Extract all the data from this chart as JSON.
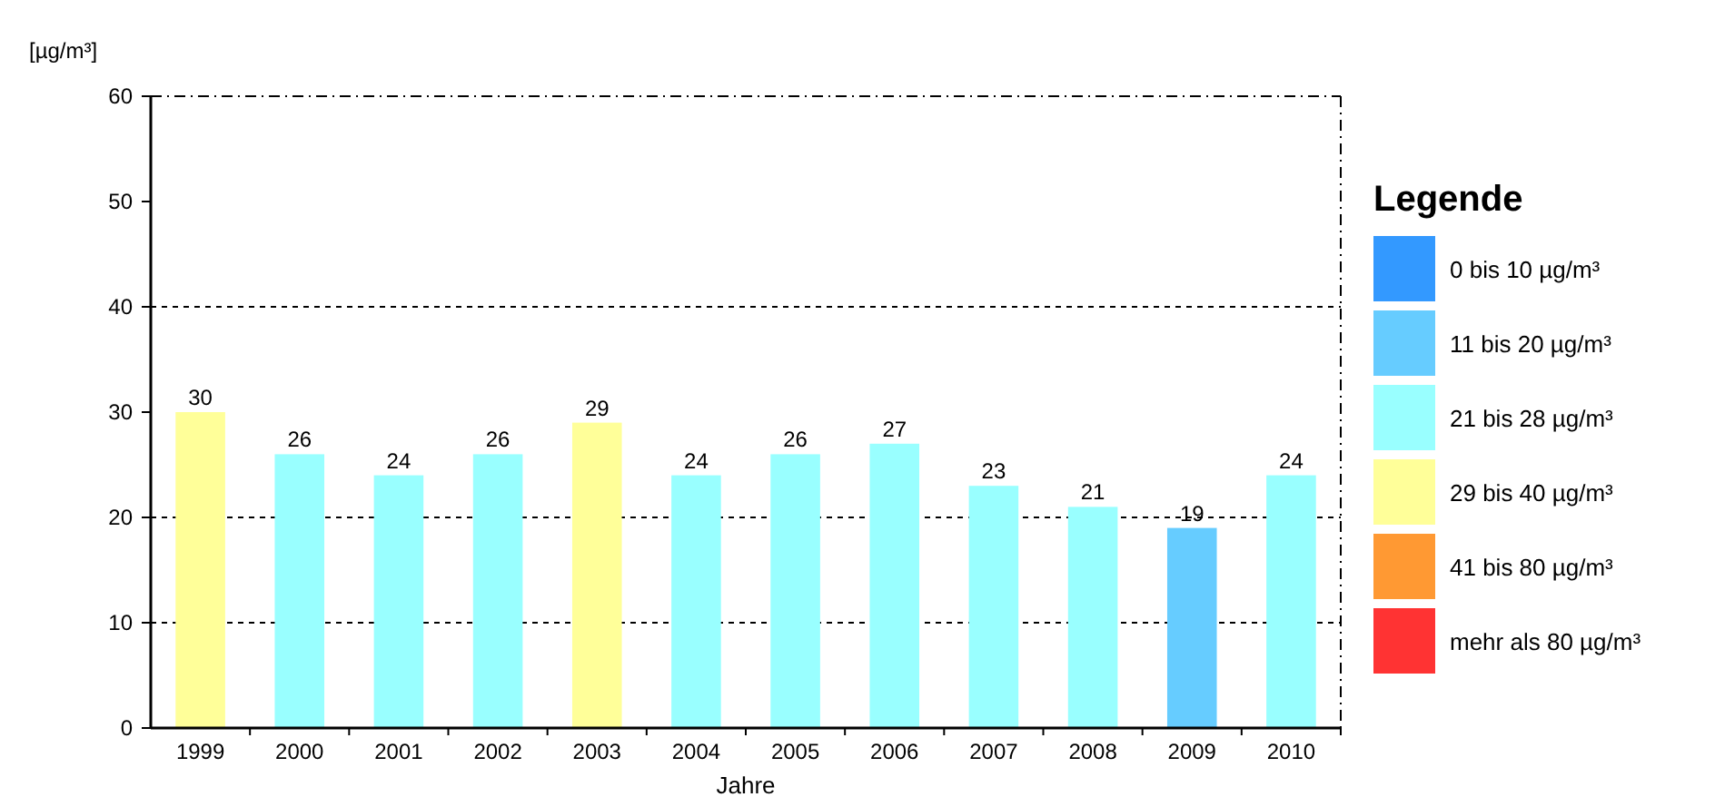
{
  "chart_data": {
    "type": "bar",
    "ylabel": "[µg/m³]",
    "xlabel": "Jahre",
    "data_labels": true,
    "categories": [
      "1999",
      "2000",
      "2001",
      "2002",
      "2003",
      "2004",
      "2005",
      "2006",
      "2007",
      "2008",
      "2009",
      "2010"
    ],
    "values": [
      30,
      26,
      24,
      26,
      29,
      24,
      26,
      27,
      23,
      21,
      19,
      24
    ],
    "colors": [
      "#ffff99",
      "#99ffff",
      "#99ffff",
      "#99ffff",
      "#ffff99",
      "#99ffff",
      "#99ffff",
      "#99ffff",
      "#99ffff",
      "#99ffff",
      "#66ccff",
      "#99ffff"
    ],
    "ylim": [
      0,
      60
    ],
    "yticks": [
      0,
      10,
      20,
      30,
      40,
      50,
      60
    ],
    "ref_lines": [
      {
        "axis": "y",
        "value": 10,
        "line_style": "dashed"
      },
      {
        "axis": "y",
        "value": 20,
        "line_style": "dashed"
      },
      {
        "axis": "y",
        "value": 40,
        "line_style": "dashed"
      }
    ],
    "annotations": [
      "Legende",
      "0 bis 10 µg/m³",
      "11 bis 20 µg/m³",
      "21 bis 28 µg/m³",
      "29 bis 40 µg/m³",
      "41 bis 80 µg/m³",
      "mehr als 80 µg/m³"
    ]
  }
}
